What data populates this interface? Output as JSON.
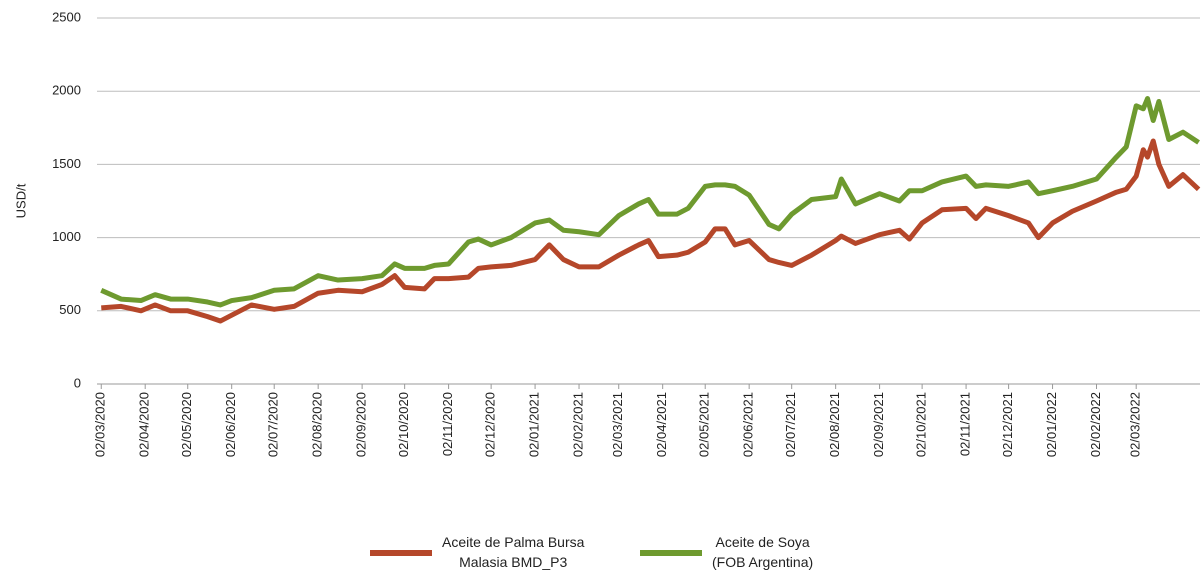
{
  "chart_data": {
    "type": "line",
    "y_label": "USD/t",
    "x": [
      "02/03/2020",
      "16/03/2020",
      "30/03/2020",
      "09/04/2020",
      "20/04/2020",
      "02/05/2020",
      "16/05/2020",
      "25/05/2020",
      "02/06/2020",
      "16/06/2020",
      "02/07/2020",
      "16/07/2020",
      "02/08/2020",
      "16/08/2020",
      "02/09/2020",
      "16/09/2020",
      "25/09/2020",
      "02/10/2020",
      "16/10/2020",
      "23/10/2020",
      "02/11/2020",
      "16/11/2020",
      "23/11/2020",
      "02/12/2020",
      "16/12/2020",
      "02/01/2021",
      "12/01/2021",
      "22/01/2021",
      "02/02/2021",
      "16/02/2021",
      "02/03/2021",
      "16/03/2021",
      "23/03/2021",
      "30/03/2021",
      "12/04/2021",
      "20/04/2021",
      "02/05/2021",
      "09/05/2021",
      "16/05/2021",
      "23/05/2021",
      "02/06/2021",
      "16/06/2021",
      "23/06/2021",
      "02/07/2021",
      "16/07/2021",
      "02/08/2021",
      "06/08/2021",
      "16/08/2021",
      "02/09/2021",
      "16/09/2021",
      "23/09/2021",
      "02/10/2021",
      "16/10/2021",
      "02/11/2021",
      "09/11/2021",
      "16/11/2021",
      "02/12/2021",
      "16/12/2021",
      "23/12/2021",
      "02/01/2022",
      "16/01/2022",
      "02/02/2022",
      "16/02/2022",
      "23/02/2022",
      "02/03/2022",
      "07/03/2022",
      "10/03/2022",
      "14/03/2022",
      "18/03/2022",
      "25/03/2022",
      "04/04/2022",
      "15/04/2022"
    ],
    "series": [
      {
        "name": "Aceite de Palma Bursa\nMalasia BMD_P3",
        "color": "#b5472a",
        "values": [
          520,
          530,
          500,
          540,
          500,
          500,
          460,
          430,
          470,
          540,
          510,
          530,
          620,
          640,
          630,
          680,
          740,
          660,
          650,
          720,
          720,
          730,
          790,
          800,
          810,
          850,
          950,
          850,
          800,
          800,
          880,
          950,
          980,
          870,
          880,
          900,
          970,
          1060,
          1060,
          950,
          980,
          850,
          830,
          810,
          880,
          980,
          1010,
          960,
          1020,
          1050,
          990,
          1100,
          1190,
          1200,
          1130,
          1200,
          1150,
          1100,
          1000,
          1100,
          1180,
          1250,
          1310,
          1330,
          1420,
          1600,
          1550,
          1660,
          1500,
          1350,
          1430,
          1330
        ]
      },
      {
        "name": "Aceite de Soya\n(FOB Argentina)",
        "color": "#6e9a2f",
        "values": [
          640,
          580,
          570,
          610,
          580,
          580,
          560,
          540,
          570,
          590,
          640,
          650,
          740,
          710,
          720,
          740,
          820,
          790,
          790,
          810,
          820,
          970,
          990,
          950,
          1000,
          1100,
          1120,
          1050,
          1040,
          1020,
          1150,
          1230,
          1260,
          1160,
          1160,
          1200,
          1350,
          1360,
          1360,
          1350,
          1290,
          1090,
          1060,
          1160,
          1260,
          1280,
          1400,
          1230,
          1300,
          1250,
          1320,
          1320,
          1380,
          1420,
          1350,
          1360,
          1350,
          1380,
          1300,
          1320,
          1350,
          1400,
          1550,
          1620,
          1900,
          1880,
          1950,
          1800,
          1930,
          1670,
          1720,
          1650
        ]
      }
    ],
    "xlim": [
      "28/02/2020",
      "16/04/2022"
    ],
    "xticks": [
      "02/03/2020",
      "02/04/2020",
      "02/05/2020",
      "02/06/2020",
      "02/07/2020",
      "02/08/2020",
      "02/09/2020",
      "02/10/2020",
      "02/11/2020",
      "02/12/2020",
      "02/01/2021",
      "02/02/2021",
      "02/03/2021",
      "02/04/2021",
      "02/05/2021",
      "02/06/2021",
      "02/07/2021",
      "02/08/2021",
      "02/09/2021",
      "02/10/2021",
      "02/11/2021",
      "02/12/2021",
      "02/01/2022",
      "02/02/2022",
      "02/03/2022"
    ],
    "ylim": [
      0,
      2500
    ],
    "yticks": [
      0,
      500,
      1000,
      1500,
      2000,
      2500
    ],
    "grid": true
  }
}
